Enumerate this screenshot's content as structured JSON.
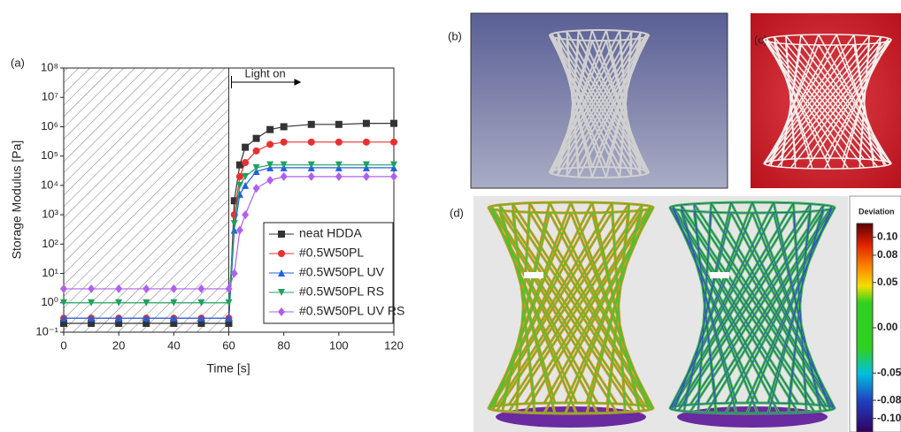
{
  "chart_data": {
    "type": "line",
    "panel_label": "(a)",
    "xlabel": "Time [s]",
    "ylabel": "Storage Modulus [Pa]",
    "log_y": true,
    "xlim": [
      0,
      120
    ],
    "ylim": [
      0.1,
      100000000
    ],
    "xticks": [
      0,
      20,
      40,
      60,
      80,
      100,
      120
    ],
    "yticks": [
      {
        "value": 0.1,
        "label": "10⁻¹"
      },
      {
        "value": 1,
        "label": "10⁰"
      },
      {
        "value": 10,
        "label": "10¹"
      },
      {
        "value": 100,
        "label": "10²"
      },
      {
        "value": 1000,
        "label": "10³"
      },
      {
        "value": 10000,
        "label": "10⁴"
      },
      {
        "value": 100000,
        "label": "10⁵"
      },
      {
        "value": 1000000,
        "label": "10⁶"
      },
      {
        "value": 10000000,
        "label": "10⁷"
      },
      {
        "value": 100000000,
        "label": "10⁸"
      }
    ],
    "hatched_region": [
      0,
      60
    ],
    "annotation": {
      "text": "Light on",
      "arrow": [
        60,
        86
      ]
    },
    "legend": "lower right",
    "x": [
      0,
      10,
      20,
      30,
      40,
      50,
      60,
      62,
      64,
      66,
      70,
      75,
      80,
      90,
      100,
      110,
      120
    ],
    "series": [
      {
        "name": "neat HDDA",
        "color": "#333333",
        "marker": "square",
        "values": [
          0.2,
          0.2,
          0.2,
          0.2,
          0.2,
          0.2,
          0.2,
          3000,
          50000,
          200000,
          400000,
          800000,
          1000000,
          1200000,
          1200000,
          1300000,
          1300000
        ]
      },
      {
        "name": "#0.5W50PL",
        "color": "#e83030",
        "marker": "circle",
        "values": [
          0.3,
          0.3,
          0.3,
          0.3,
          0.3,
          0.3,
          0.3,
          1000,
          20000,
          60000,
          150000,
          250000,
          300000,
          300000,
          300000,
          300000,
          300000
        ]
      },
      {
        "name": "#0.5W50PL UV",
        "color": "#2060e0",
        "marker": "triangle",
        "values": [
          0.3,
          0.3,
          0.3,
          0.3,
          0.3,
          0.3,
          0.3,
          300,
          5000,
          10000,
          30000,
          40000,
          40000,
          40000,
          40000,
          40000,
          40000
        ]
      },
      {
        "name": "#0.5W50PL RS",
        "color": "#1fa060",
        "marker": "down-triangle",
        "values": [
          1,
          1,
          1,
          1,
          1,
          1,
          1,
          500,
          10000,
          20000,
          40000,
          50000,
          50000,
          50000,
          50000,
          50000,
          50000
        ]
      },
      {
        "name": "#0.5W50PL UV RS",
        "color": "#b060f0",
        "marker": "diamond",
        "values": [
          3,
          3,
          3,
          3,
          3,
          3,
          3,
          10,
          300,
          1000,
          8000,
          15000,
          20000,
          20000,
          20000,
          20000,
          20000
        ]
      }
    ]
  },
  "panels": {
    "b": "(b)",
    "c": "(c)",
    "d": "(d)"
  },
  "colorbar": {
    "title": "Deviation",
    "lim": [
      -0.115,
      0.115
    ],
    "ticks": [
      {
        "value": 0.1,
        "label": "0.10"
      },
      {
        "value": 0.08,
        "label": "0.08"
      },
      {
        "value": 0.05,
        "label": "0.05"
      },
      {
        "value": 0,
        "label": "0.00"
      },
      {
        "value": -0.05,
        "label": "-0.05"
      },
      {
        "value": -0.08,
        "label": "-0.08"
      },
      {
        "value": -0.1,
        "label": "-0.10"
      }
    ]
  }
}
